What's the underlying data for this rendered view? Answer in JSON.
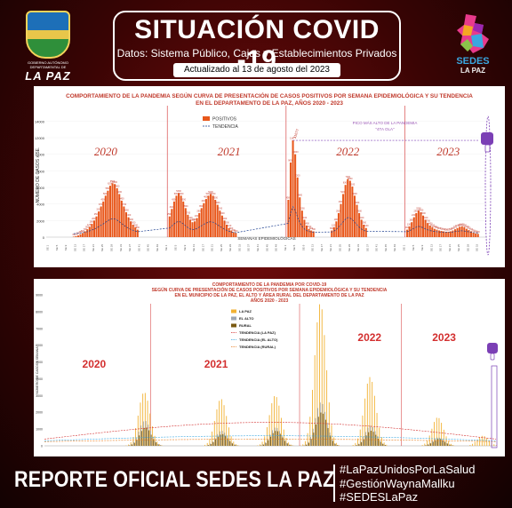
{
  "header": {
    "title": "SITUACIÓN COVID -19",
    "subtitle": "Datos: Sistema Público, Cajas y Establecimientos Privados",
    "updated": "Actualizado al 13 de agosto del 2023"
  },
  "logos": {
    "gov_text": "GOBIERNO AUTÓNOMO DEPARTAMENTAL DE",
    "gov_name": "LA PAZ",
    "sedes_name": "SEDES",
    "sedes_sub": "LA PAZ"
  },
  "footer": {
    "report": "REPORTE OFICIAL SEDES LA PAZ",
    "hashtags": [
      "#LaPazUnidosPorLaSalud",
      "#GestiónWaynaMallku",
      "#SEDESLaPaz"
    ]
  },
  "colors": {
    "accent_red": "#c0392b",
    "bar_orange": "#e8581c",
    "lapaz": "#f2b233",
    "elalto": "#9ea7b3",
    "rural": "#7a5a12",
    "purple": "#7b3fb5"
  },
  "chart_data": [
    {
      "type": "bar",
      "title_line1": "COMPORTAMIENTO DE LA PANDEMIA SEGÚN CURVA DE PRESENTACIÓN DE CASOS POSITIVOS POR SEMANA EPIDEMIOLÓGICA Y SU TENDENCIA",
      "title_line2": "EN EL DEPARTAMENTO DE LA PAZ, AÑOS 2020 - 2023",
      "ylabel": "NÚMERO DE CASOS x SE.",
      "xlabel": "SEMANAS EPIDEMIOLÓGICAS",
      "ylim": [
        0,
        15000
      ],
      "yticks": [
        0,
        2000,
        4000,
        6000,
        8000,
        10000,
        12000,
        14000
      ],
      "legend": [
        "POSITIVOS",
        "TENDENCIA"
      ],
      "years": [
        "2020",
        "2021",
        "2022",
        "2023"
      ],
      "peak_annotation": "PICO MÁS ALTO DE LA PANDEMIA\n\"4TA OLA\"",
      "peak_value": "11677",
      "waves": [
        {
          "year": "2020",
          "weeks": [
            12,
            13,
            14,
            15,
            16,
            17,
            18,
            19,
            20,
            21,
            22,
            23,
            24,
            25,
            26,
            27,
            28,
            29,
            30,
            31,
            32,
            33,
            34,
            35,
            36,
            37,
            38,
            39,
            40
          ],
          "values": [
            60,
            120,
            200,
            350,
            500,
            700,
            950,
            1250,
            1600,
            2000,
            2500,
            3100,
            3700,
            4300,
            5000,
            5600,
            6200,
            6500,
            6400,
            5900,
            5200,
            4400,
            3700,
            3000,
            2400,
            1900,
            1500,
            1200,
            900
          ]
        },
        {
          "year": "2021",
          "weeks": [
            1,
            2,
            3,
            4,
            5,
            6,
            7,
            8,
            9,
            10,
            11,
            12,
            13,
            14,
            15,
            16,
            17,
            18,
            19,
            20,
            21,
            22,
            23,
            24,
            25,
            26,
            27,
            28,
            29,
            30
          ],
          "values": [
            2500,
            3400,
            4300,
            5000,
            5300,
            5000,
            4300,
            3500,
            2700,
            2100,
            1800,
            1900,
            2300,
            2900,
            3500,
            4100,
            4600,
            5000,
            5200,
            5000,
            4500,
            3900,
            3200,
            2600,
            2000,
            1500,
            1100,
            800,
            600,
            500
          ]
        },
        {
          "year": "2022",
          "weeks": [
            1,
            2,
            3,
            4,
            5,
            6,
            7,
            8,
            9,
            10,
            11,
            12
          ],
          "values": [
            4500,
            9000,
            11677,
            10000,
            7200,
            4800,
            3200,
            2100,
            1400,
            1000,
            800,
            700
          ]
        },
        {
          "year": "2022b",
          "weeks": [
            20,
            21,
            22,
            23,
            24,
            25,
            26,
            27,
            28,
            29,
            30,
            31,
            32,
            33,
            34,
            35
          ],
          "values": [
            800,
            1200,
            1900,
            2900,
            4000,
            5200,
            6300,
            7000,
            6800,
            6100,
            5000,
            3900,
            2900,
            2100,
            1500,
            1100
          ]
        },
        {
          "year": "2023",
          "weeks": [
            1,
            2,
            3,
            4,
            5,
            6,
            7,
            8,
            9,
            10,
            11,
            12,
            13,
            14,
            15,
            16,
            17,
            18,
            19,
            20,
            21,
            22,
            23,
            24,
            25,
            26,
            27,
            28,
            29,
            30,
            31,
            32
          ],
          "values": [
            900,
            1300,
            1800,
            2400,
            2900,
            3200,
            3000,
            2600,
            2100,
            1700,
            1400,
            1200,
            1000,
            900,
            800,
            750,
            700,
            650,
            650,
            700,
            800,
            950,
            1100,
            1250,
            1300,
            1200,
            1000,
            850,
            700,
            550,
            450,
            400
          ]
        }
      ]
    },
    {
      "type": "bar",
      "title_line1": "COMPORTAMIENTO DE LA PANDEMIA POR COVID-19",
      "title_line2": "SEGÚN CURVA DE PRESENTACIÓN DE CASOS POSITIVOS POR SEMANA EPIDEMIOLÓGICA Y SU TENDENCIA",
      "title_line3": "EN EL MUNICIPIO DE LA PAZ, EL ALTO Y ÁREA RURAL DEL DEPARTAMENTO DE LA PAZ",
      "title_line4": "AÑOS 2020 - 2023",
      "ylabel": "NÚMERO DE CASOS x SEMANA",
      "ylim": [
        0,
        9000
      ],
      "yticks": [
        0,
        1000,
        2000,
        3000,
        4000,
        5000,
        6000,
        7000,
        8000,
        9000
      ],
      "legend": [
        "LA PAZ",
        "EL ALTO",
        "RURAL",
        "TENDENCIA (LA PAZ)",
        "TENDENCIA (EL ALTO)",
        "TENDENCIA (RURAL)"
      ],
      "years": [
        "2020",
        "2021",
        "2022",
        "2023"
      ],
      "series": [
        {
          "name": "LA PAZ",
          "peaks": [
            [
              0.22,
              3200
            ],
            [
              0.39,
              2800
            ],
            [
              0.51,
              3000
            ],
            [
              0.61,
              8500
            ],
            [
              0.72,
              4100
            ],
            [
              0.87,
              1700
            ],
            [
              0.97,
              600
            ]
          ]
        },
        {
          "name": "EL ALTO",
          "peaks": [
            [
              0.22,
              1500
            ],
            [
              0.39,
              900
            ],
            [
              0.51,
              1100
            ],
            [
              0.61,
              2600
            ],
            [
              0.72,
              1200
            ],
            [
              0.87,
              500
            ]
          ]
        },
        {
          "name": "RURAL",
          "peaks": [
            [
              0.22,
              1100
            ],
            [
              0.39,
              700
            ],
            [
              0.51,
              900
            ],
            [
              0.61,
              2000
            ],
            [
              0.72,
              900
            ],
            [
              0.87,
              400
            ]
          ]
        }
      ]
    }
  ]
}
